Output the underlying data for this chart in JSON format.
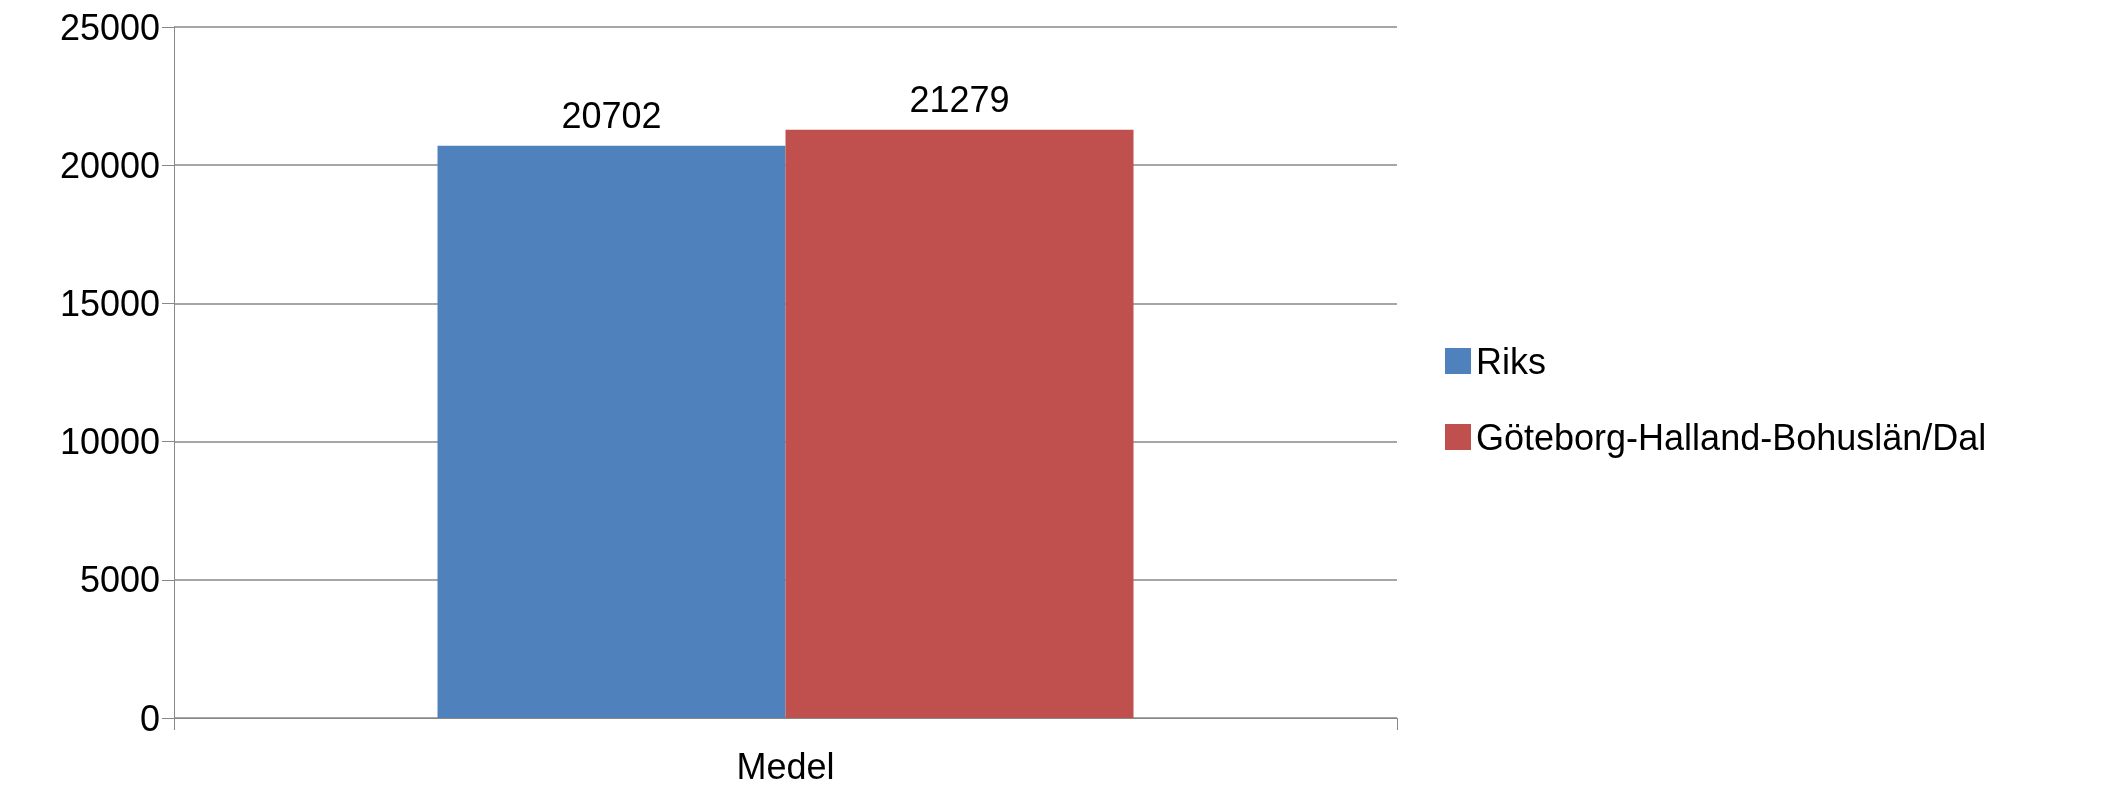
{
  "chart_data": {
    "type": "bar",
    "categories": [
      "Medel"
    ],
    "series": [
      {
        "name": "Riks",
        "color": "#4f81bd",
        "values": [
          20702
        ]
      },
      {
        "name": "Göteborg-Halland-Bohuslän/Dal",
        "color": "#c0504d",
        "values": [
          21279
        ]
      }
    ],
    "ylim": [
      0,
      25000
    ],
    "yticks": [
      0,
      5000,
      10000,
      15000,
      20000,
      25000
    ],
    "grid": "y",
    "legend": "right",
    "data_labels": true
  }
}
